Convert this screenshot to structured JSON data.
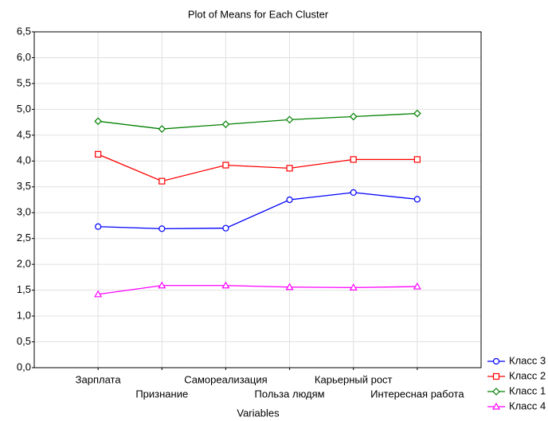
{
  "chart_data": {
    "type": "line",
    "title": "Plot of Means for Each Cluster",
    "x_label": "Variables",
    "categories": [
      "Зарплата",
      "Признание",
      "Самореализация",
      "Польза людям",
      "Карьерный рост",
      "Интересная работа"
    ],
    "series": [
      {
        "name": "Класс 3",
        "color": "#0000ff",
        "marker": "circle",
        "values": [
          2.73,
          2.69,
          2.7,
          3.25,
          3.39,
          3.26
        ]
      },
      {
        "name": "Класс 2",
        "color": "#ff0000",
        "marker": "square",
        "values": [
          4.13,
          3.61,
          3.92,
          3.86,
          4.03,
          4.03
        ]
      },
      {
        "name": "Класс 1",
        "color": "#008000",
        "marker": "diamond",
        "values": [
          4.77,
          4.62,
          4.71,
          4.8,
          4.86,
          4.92
        ]
      },
      {
        "name": "Класс 4",
        "color": "#ff00ff",
        "marker": "triangle",
        "values": [
          1.42,
          1.59,
          1.59,
          1.56,
          1.55,
          1.57
        ]
      }
    ],
    "ylim": [
      0,
      6.5
    ],
    "yticks": [
      {
        "value": 0,
        "label": "0,0"
      },
      {
        "value": 0.5,
        "label": "0,5"
      },
      {
        "value": 1,
        "label": "1,0"
      },
      {
        "value": 1.5,
        "label": "1,5"
      },
      {
        "value": 2,
        "label": "2,0"
      },
      {
        "value": 2.5,
        "label": "2,5"
      },
      {
        "value": 3,
        "label": "3,0"
      },
      {
        "value": 3.5,
        "label": "3,5"
      },
      {
        "value": 4,
        "label": "4,0"
      },
      {
        "value": 4.5,
        "label": "4,5"
      },
      {
        "value": 5,
        "label": "5,0"
      },
      {
        "value": 5.5,
        "label": "5,5"
      },
      {
        "value": 6,
        "label": "6,0"
      },
      {
        "value": 6.5,
        "label": "6,5"
      }
    ],
    "grid": true,
    "legend": "lower right"
  }
}
